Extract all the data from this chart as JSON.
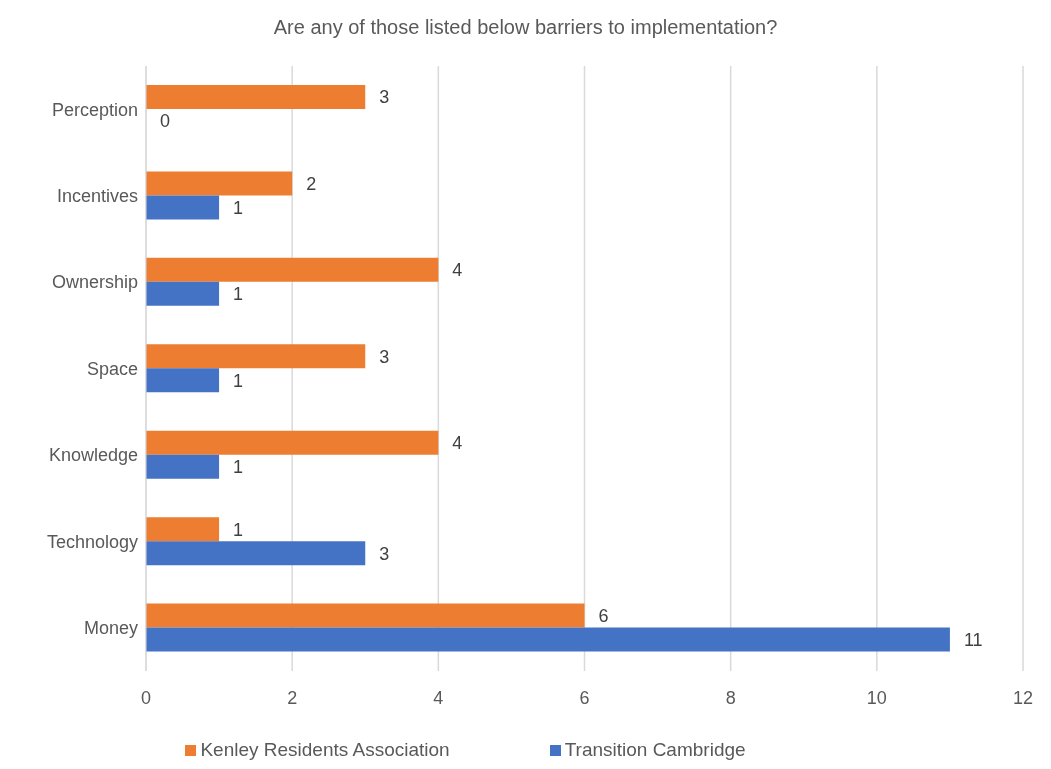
{
  "chart_data": {
    "type": "bar",
    "orientation": "horizontal",
    "title": "Are any of those listed below barriers to implementation?",
    "categories": [
      "Perception",
      "Incentives",
      "Ownership",
      "Space",
      "Knowledge",
      "Technology",
      "Money"
    ],
    "series": [
      {
        "name": "Kenley Residents Association",
        "color": "#ed7d31",
        "values": [
          3,
          2,
          4,
          3,
          4,
          1,
          6
        ]
      },
      {
        "name": "Transition Cambridge",
        "color": "#4472c4",
        "values": [
          0,
          1,
          1,
          1,
          1,
          3,
          11
        ]
      }
    ],
    "xlim": [
      0,
      12
    ],
    "xticks": [
      0,
      2,
      4,
      6,
      8,
      10,
      12
    ],
    "grid": "x",
    "legend": "bottom",
    "data_labels": true
  }
}
